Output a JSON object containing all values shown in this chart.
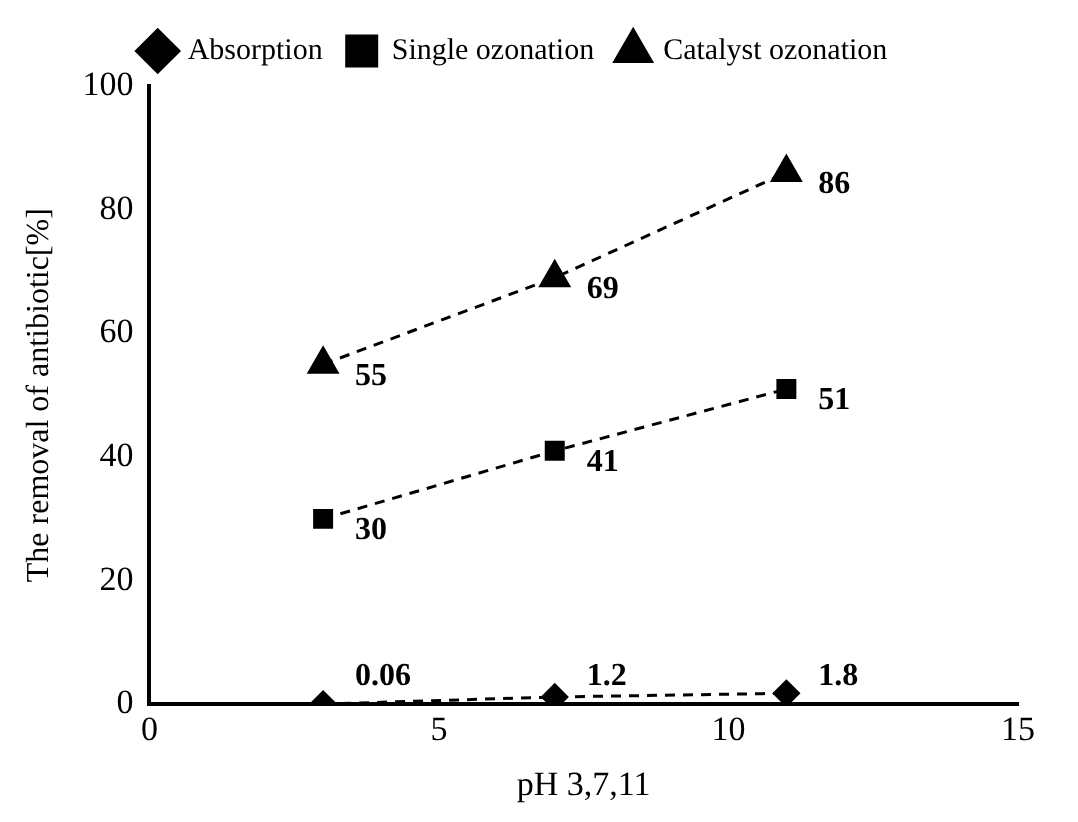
{
  "chart_data": {
    "type": "line",
    "xlabel": "pH 3,7,11",
    "ylabel": "The removal of antibiotic[%]",
    "x": [
      3,
      7,
      11
    ],
    "series": [
      {
        "name": "Absorption",
        "color": "#000000",
        "values": [
          0.06,
          1.2,
          1.8
        ],
        "marker": "diamond"
      },
      {
        "name": "Single ozonation",
        "color": "#000000",
        "values": [
          30,
          41,
          51
        ],
        "marker": "square"
      },
      {
        "name": "Catalyst ozonation",
        "color": "#000000",
        "values": [
          55,
          69,
          86
        ],
        "marker": "triangle"
      }
    ],
    "xlim": [
      0,
      15
    ],
    "xticks": [
      0,
      5,
      10,
      15
    ],
    "ylim": [
      0,
      100
    ],
    "yticks": [
      0,
      20,
      40,
      60,
      80,
      100
    ],
    "grid": false,
    "legend": "top",
    "line_style": "dashed",
    "data_labels": true
  }
}
